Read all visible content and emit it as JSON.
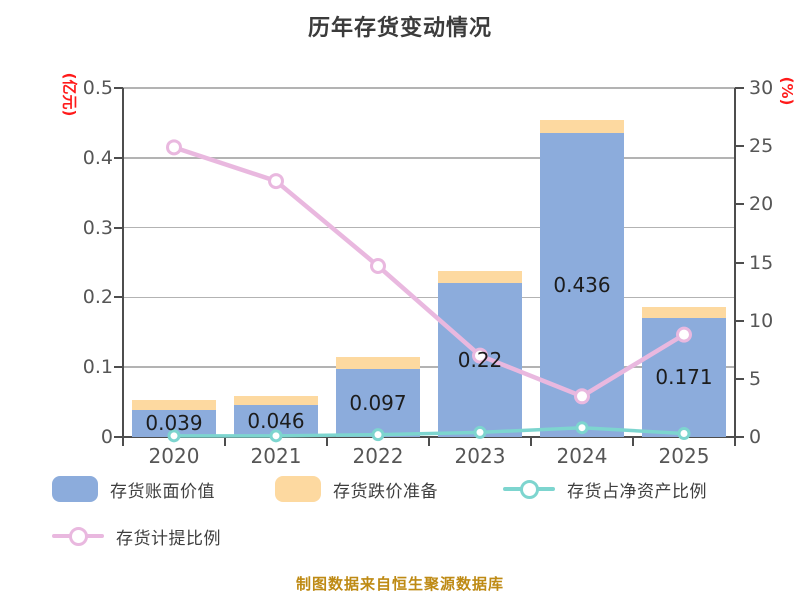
{
  "title": "历年存货变动情况",
  "footer": "制图数据来自恒生聚源数据库",
  "left_axis": {
    "label": "(亿元)",
    "ticks": [
      "0.5",
      "0.4",
      "0.3",
      "0.2",
      "0.1",
      "0"
    ],
    "tick_values": [
      0.5,
      0.4,
      0.3,
      0.2,
      0.1,
      0
    ]
  },
  "right_axis": {
    "label": "(%)",
    "ticks": [
      "30",
      "25",
      "20",
      "15",
      "10",
      "5",
      "0"
    ],
    "tick_values": [
      30,
      25,
      20,
      15,
      10,
      5,
      0
    ]
  },
  "legend": {
    "items": [
      {
        "label": "存货账面价值",
        "marker": "blue-rect"
      },
      {
        "label": "存货跌价准备",
        "marker": "orange-rect"
      },
      {
        "label": "存货占净资产比例",
        "marker": "cyan-line-dot"
      },
      {
        "label": "存货计提比例",
        "marker": "pink-line-dot"
      }
    ]
  },
  "colors": {
    "bar_book_value": "#8CACDC",
    "bar_provision": "#FDD9A0",
    "line_net_asset_ratio": "#7DD5CF",
    "line_provision_ratio": "#E9B8DF",
    "axis_unit_red": "#FF1A1A",
    "footer_gold": "#BE8A14",
    "title_gray": "#3B3B3B",
    "tick_gray": "#565656",
    "grid_gray": "#B3B3B3",
    "spine_gray": "#4D4D4D",
    "bar_label_black": "#1C1C1C"
  },
  "chart_data": {
    "type": "bar",
    "subtype": "stacked-bars-with-two-lines",
    "title": "历年存货变动情况",
    "categories": [
      "2020",
      "2021",
      "2022",
      "2023",
      "2024",
      "2025"
    ],
    "left_ylabel": "(亿元)",
    "right_ylabel": "(%)",
    "left_ylim": [
      0,
      0.5
    ],
    "right_ylim": [
      0,
      30
    ],
    "grid": true,
    "legend_position": "bottom",
    "series": [
      {
        "name": "存货账面价值",
        "type": "bar",
        "axis": "left",
        "values": [
          0.039,
          0.046,
          0.097,
          0.22,
          0.436,
          0.171
        ],
        "data_labels": [
          "0.039",
          "0.046",
          "0.097",
          "0.22",
          "0.436",
          "0.171"
        ]
      },
      {
        "name": "存货跌价准备",
        "type": "bar-stacked-on-top",
        "axis": "left",
        "values": [
          0.014,
          0.013,
          0.018,
          0.018,
          0.018,
          0.015
        ]
      },
      {
        "name": "存货占净资产比例",
        "type": "line",
        "axis": "right",
        "values": [
          0.1,
          0.1,
          0.2,
          0.4,
          0.8,
          0.3
        ]
      },
      {
        "name": "存货计提比例",
        "type": "line",
        "axis": "right",
        "values": [
          24.9,
          22.0,
          14.7,
          7.0,
          3.5,
          8.8
        ]
      }
    ]
  }
}
